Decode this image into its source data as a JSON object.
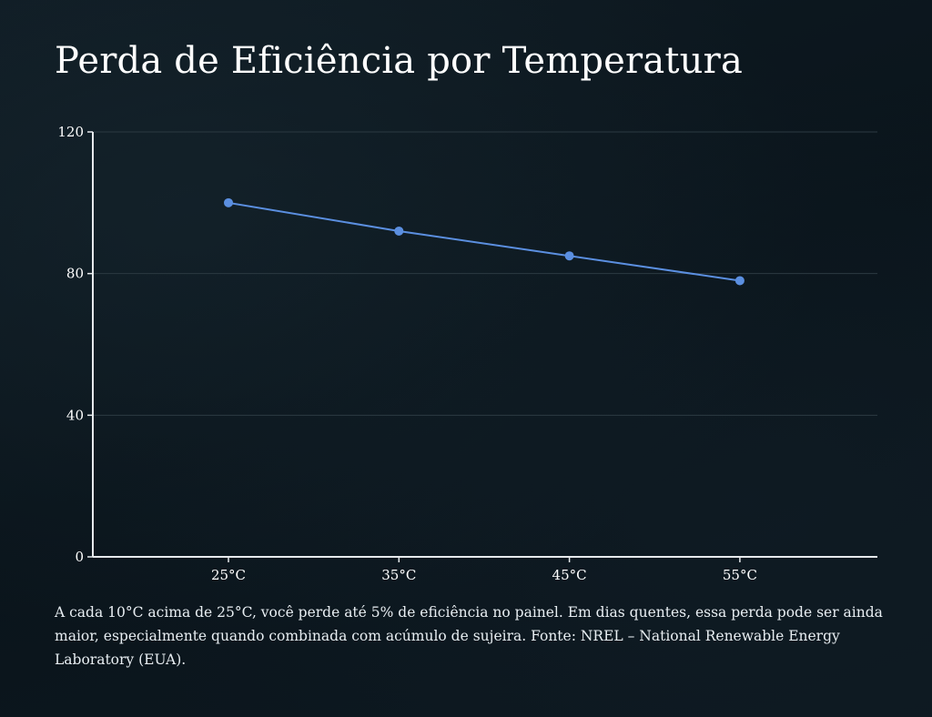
{
  "title": "Perda de Eficiência por Temperatura",
  "caption": "A cada 10°C acima de 25°C, você perde até 5% de eficiência no painel. Em dias quentes, essa perda pode ser ainda maior, especialmente quando combinada com acúmulo de sujeira. Fonte: NREL – National Renewable Energy Laboratory (EUA).",
  "colors": {
    "line": "#5b8fe0",
    "axis": "#e6e9ec",
    "grid": "#2c3a42",
    "background": "#0c161d"
  },
  "chart_data": {
    "type": "line",
    "categories": [
      "25°C",
      "35°C",
      "45°C",
      "55°C"
    ],
    "series": [
      {
        "values": [
          100,
          92,
          85,
          78
        ]
      }
    ],
    "ylim": [
      0,
      120
    ],
    "yticks": [
      0,
      40,
      80,
      120
    ],
    "grid": true,
    "legend": "none"
  }
}
